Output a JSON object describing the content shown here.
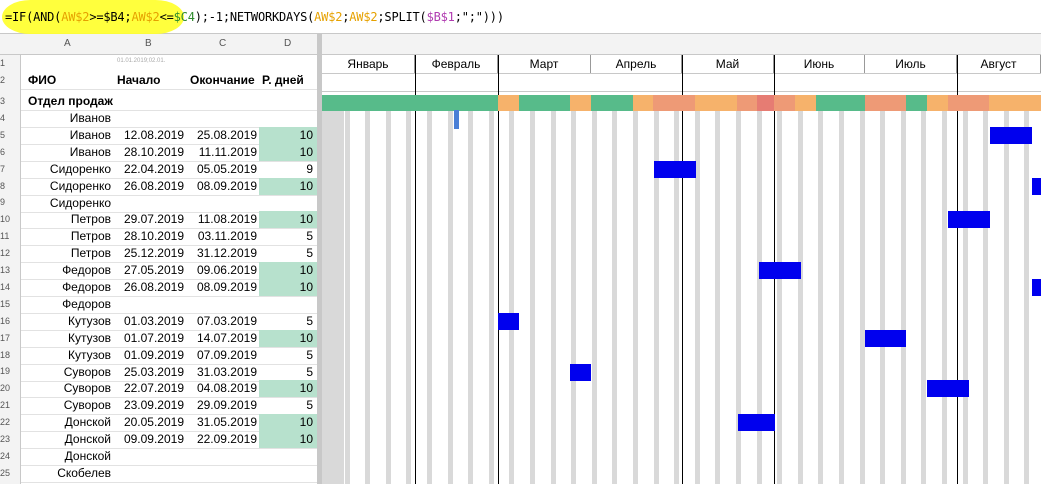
{
  "formula": {
    "p1": "=IF(AND(",
    "p2": "AW$2",
    "p3": ">=$B4;",
    "p4": "AW$2",
    "p5": "<=",
    "p6": "$C4",
    "p7": ");-1;NETWORKDAYS(",
    "p8": "AW$2",
    "p9": ";",
    "p10": "AW$2",
    "p11": ";SPLIT(",
    "p12": "$B$1",
    "p13": ";\";\")))"
  },
  "columns": [
    "A",
    "B",
    "C",
    "D"
  ],
  "tiny_note": "01.01.2019;02.01.",
  "headers": {
    "fio": "ФИО",
    "start": "Начало",
    "end": "Окончание",
    "days": "Р. дней"
  },
  "months": [
    "Январь",
    "Февраль",
    "Март",
    "Апрель",
    "Май",
    "Июнь",
    "Июль",
    "Август"
  ],
  "department": "Отдел продаж",
  "row_numbers": [
    "1",
    "2",
    "3",
    "4",
    "5",
    "6",
    "7",
    "8",
    "9",
    "10",
    "11",
    "12",
    "13",
    "14",
    "15",
    "16",
    "17",
    "18",
    "19",
    "20",
    "21",
    "22",
    "23",
    "24",
    "25"
  ],
  "rows": [
    {
      "name": "Иванов",
      "start": "",
      "end": "",
      "days": ""
    },
    {
      "name": "Иванов",
      "start": "12.08.2019",
      "end": "25.08.2019",
      "days": "10"
    },
    {
      "name": "Иванов",
      "start": "28.10.2019",
      "end": "11.11.2019",
      "days": "10"
    },
    {
      "name": "Сидоренко",
      "start": "22.04.2019",
      "end": "05.05.2019",
      "days": "9"
    },
    {
      "name": "Сидоренко",
      "start": "26.08.2019",
      "end": "08.09.2019",
      "days": "10"
    },
    {
      "name": "Сидоренко",
      "start": "",
      "end": "",
      "days": ""
    },
    {
      "name": "Петров",
      "start": "29.07.2019",
      "end": "11.08.2019",
      "days": "10"
    },
    {
      "name": "Петров",
      "start": "28.10.2019",
      "end": "03.11.2019",
      "days": "5"
    },
    {
      "name": "Петров",
      "start": "25.12.2019",
      "end": "31.12.2019",
      "days": "5"
    },
    {
      "name": "Федоров",
      "start": "27.05.2019",
      "end": "09.06.2019",
      "days": "10"
    },
    {
      "name": "Федоров",
      "start": "26.08.2019",
      "end": "08.09.2019",
      "days": "10"
    },
    {
      "name": "Федоров",
      "start": "",
      "end": "",
      "days": ""
    },
    {
      "name": "Кутузов",
      "start": "01.03.2019",
      "end": "07.03.2019",
      "days": "5"
    },
    {
      "name": "Кутузов",
      "start": "01.07.2019",
      "end": "14.07.2019",
      "days": "10"
    },
    {
      "name": "Кутузов",
      "start": "01.09.2019",
      "end": "07.09.2019",
      "days": "5"
    },
    {
      "name": "Суворов",
      "start": "25.03.2019",
      "end": "31.03.2019",
      "days": "5"
    },
    {
      "name": "Суворов",
      "start": "22.07.2019",
      "end": "04.08.2019",
      "days": "10"
    },
    {
      "name": "Суворов",
      "start": "23.09.2019",
      "end": "29.09.2019",
      "days": "5"
    },
    {
      "name": "Донской",
      "start": "20.05.2019",
      "end": "31.05.2019",
      "days": "10"
    },
    {
      "name": "Донской",
      "start": "09.09.2019",
      "end": "22.09.2019",
      "days": "10"
    },
    {
      "name": "Донской",
      "start": "",
      "end": "",
      "days": ""
    },
    {
      "name": "Скобелев",
      "start": "",
      "end": "",
      "days": ""
    }
  ],
  "colors": {
    "highlight": "#ffff33",
    "bar": "#0000ee",
    "load_green": "#57bb8a",
    "load_yellow": "#f6b26b",
    "load_orange": "#ee9a76",
    "load_red": "#e67c73",
    "weekend": "#d9d9d9",
    "days_fill": "#b7e1cd"
  }
}
